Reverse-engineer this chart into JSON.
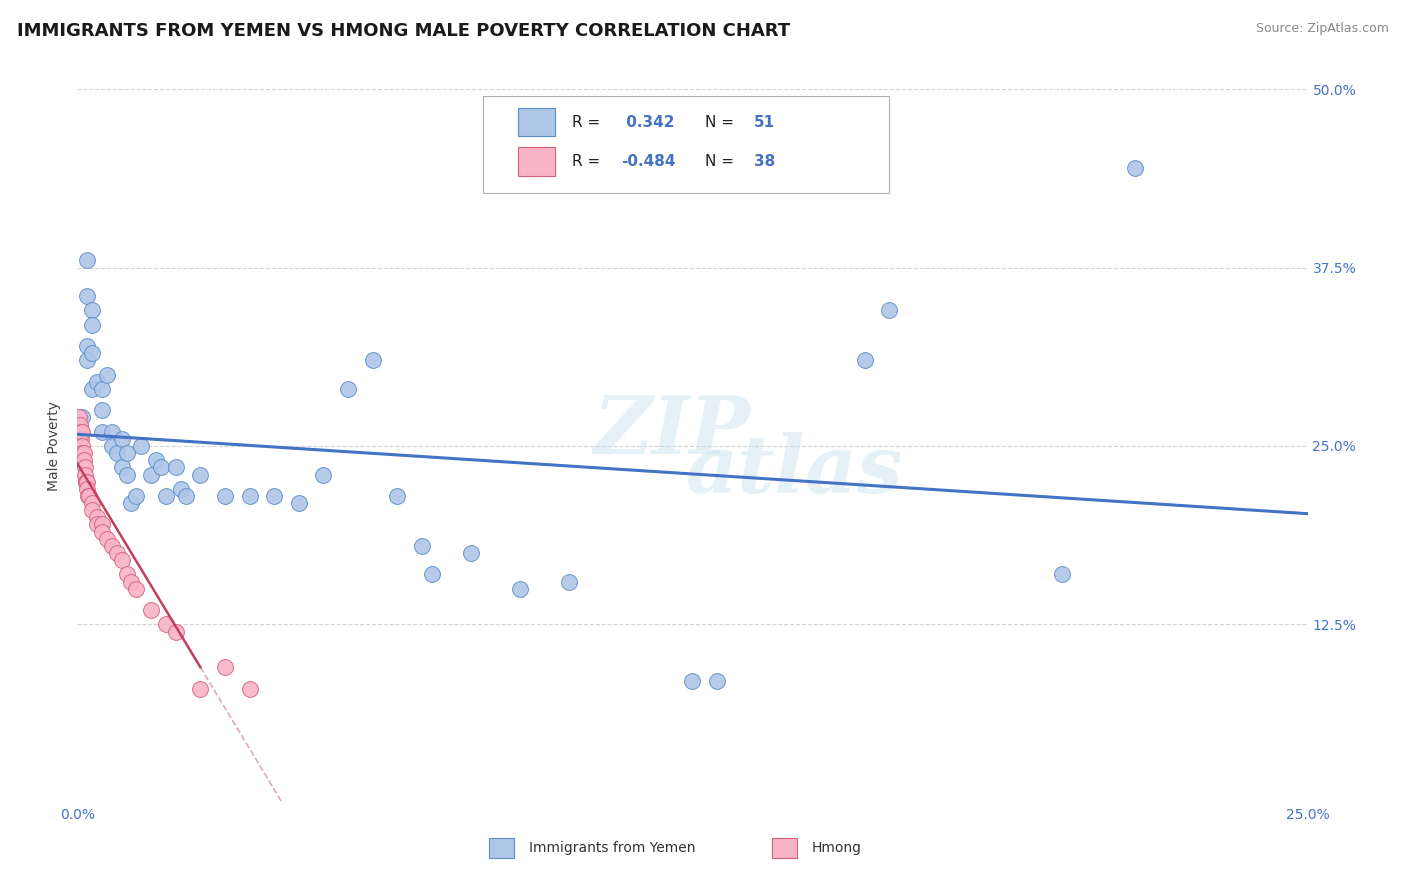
{
  "title": "IMMIGRANTS FROM YEMEN VS HMONG MALE POVERTY CORRELATION CHART",
  "source": "Source: ZipAtlas.com",
  "xlabel_blue": "Immigrants from Yemen",
  "xlabel_pink": "Hmong",
  "ylabel": "Male Poverty",
  "watermark_top": "ZIP",
  "watermark_bot": "atlas",
  "xlim": [
    0,
    0.25
  ],
  "ylim": [
    0,
    0.5
  ],
  "ytick_positions": [
    0.5,
    0.375,
    0.25,
    0.125
  ],
  "ytick_labels": [
    "50.0%",
    "37.5%",
    "25.0%",
    "12.5%"
  ],
  "xtick_positions": [
    0.0,
    0.05,
    0.1,
    0.15,
    0.2,
    0.25
  ],
  "xtick_labels": [
    "0.0%",
    "",
    "",
    "",
    "",
    "25.0%"
  ],
  "legend_blue_R": "0.342",
  "legend_blue_N": "51",
  "legend_pink_R": "-0.484",
  "legend_pink_N": "38",
  "blue_color": "#aec6e8",
  "blue_edge_color": "#5b8dc8",
  "blue_line_color": "#4472c4",
  "pink_color": "#f8b4c8",
  "pink_edge_color": "#d4607a",
  "pink_line_color": "#c0405a",
  "background_color": "#ffffff",
  "grid_color": "#c8c8c8",
  "title_color": "#1a1a1a",
  "title_fontsize": 13,
  "axis_label_fontsize": 10,
  "tick_fontsize": 10,
  "source_fontsize": 9,
  "blue_scatter": [
    [
      0.001,
      0.27
    ],
    [
      0.002,
      0.38
    ],
    [
      0.002,
      0.355
    ],
    [
      0.002,
      0.32
    ],
    [
      0.002,
      0.31
    ],
    [
      0.003,
      0.345
    ],
    [
      0.003,
      0.335
    ],
    [
      0.003,
      0.315
    ],
    [
      0.003,
      0.29
    ],
    [
      0.004,
      0.295
    ],
    [
      0.005,
      0.29
    ],
    [
      0.005,
      0.275
    ],
    [
      0.005,
      0.26
    ],
    [
      0.006,
      0.3
    ],
    [
      0.007,
      0.26
    ],
    [
      0.007,
      0.25
    ],
    [
      0.008,
      0.245
    ],
    [
      0.009,
      0.255
    ],
    [
      0.009,
      0.235
    ],
    [
      0.01,
      0.245
    ],
    [
      0.01,
      0.23
    ],
    [
      0.011,
      0.21
    ],
    [
      0.012,
      0.215
    ],
    [
      0.013,
      0.25
    ],
    [
      0.015,
      0.23
    ],
    [
      0.016,
      0.24
    ],
    [
      0.017,
      0.235
    ],
    [
      0.018,
      0.215
    ],
    [
      0.02,
      0.235
    ],
    [
      0.021,
      0.22
    ],
    [
      0.022,
      0.215
    ],
    [
      0.025,
      0.23
    ],
    [
      0.03,
      0.215
    ],
    [
      0.035,
      0.215
    ],
    [
      0.04,
      0.215
    ],
    [
      0.045,
      0.21
    ],
    [
      0.05,
      0.23
    ],
    [
      0.055,
      0.29
    ],
    [
      0.06,
      0.31
    ],
    [
      0.065,
      0.215
    ],
    [
      0.07,
      0.18
    ],
    [
      0.072,
      0.16
    ],
    [
      0.08,
      0.175
    ],
    [
      0.09,
      0.15
    ],
    [
      0.1,
      0.155
    ],
    [
      0.125,
      0.085
    ],
    [
      0.13,
      0.085
    ],
    [
      0.16,
      0.31
    ],
    [
      0.165,
      0.345
    ],
    [
      0.2,
      0.16
    ],
    [
      0.215,
      0.445
    ]
  ],
  "pink_scatter": [
    [
      0.0003,
      0.27
    ],
    [
      0.0005,
      0.265
    ],
    [
      0.0006,
      0.255
    ],
    [
      0.0007,
      0.26
    ],
    [
      0.0008,
      0.255
    ],
    [
      0.0009,
      0.26
    ],
    [
      0.001,
      0.25
    ],
    [
      0.001,
      0.245
    ],
    [
      0.0012,
      0.24
    ],
    [
      0.0013,
      0.245
    ],
    [
      0.0014,
      0.24
    ],
    [
      0.0015,
      0.235
    ],
    [
      0.0016,
      0.23
    ],
    [
      0.0017,
      0.225
    ],
    [
      0.0018,
      0.225
    ],
    [
      0.002,
      0.225
    ],
    [
      0.002,
      0.22
    ],
    [
      0.0022,
      0.215
    ],
    [
      0.0023,
      0.215
    ],
    [
      0.003,
      0.21
    ],
    [
      0.003,
      0.205
    ],
    [
      0.004,
      0.2
    ],
    [
      0.004,
      0.195
    ],
    [
      0.005,
      0.195
    ],
    [
      0.005,
      0.19
    ],
    [
      0.006,
      0.185
    ],
    [
      0.007,
      0.18
    ],
    [
      0.008,
      0.175
    ],
    [
      0.009,
      0.17
    ],
    [
      0.01,
      0.16
    ],
    [
      0.011,
      0.155
    ],
    [
      0.012,
      0.15
    ],
    [
      0.015,
      0.135
    ],
    [
      0.018,
      0.125
    ],
    [
      0.02,
      0.12
    ],
    [
      0.025,
      0.08
    ],
    [
      0.03,
      0.095
    ],
    [
      0.035,
      0.08
    ]
  ]
}
